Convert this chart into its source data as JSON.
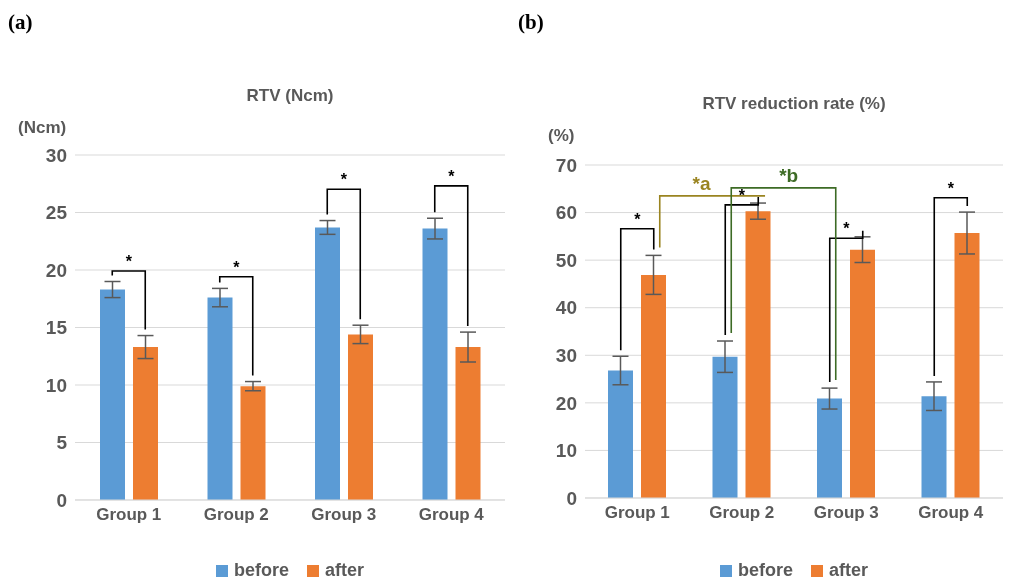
{
  "chart_data": [
    {
      "type": "bar",
      "title": "RTV (Ncm)",
      "ylabel": "(Ncm)",
      "categories": [
        "Group 1",
        "Group 2",
        "Group 3",
        "Group 4"
      ],
      "series": [
        {
          "name": "before",
          "color": "#5b9bd5",
          "values": [
            18.3,
            17.6,
            23.7,
            23.6
          ],
          "errors": [
            0.7,
            0.8,
            0.6,
            0.9
          ]
        },
        {
          "name": "after",
          "color": "#ed7d31",
          "values": [
            13.3,
            9.9,
            14.4,
            13.3
          ],
          "errors": [
            1.0,
            0.4,
            0.8,
            1.3
          ]
        }
      ],
      "ylim": [
        0,
        30
      ],
      "yticks": [
        0,
        5,
        10,
        15,
        20,
        25,
        30
      ],
      "grid": "y",
      "legend": "bottom",
      "annotations": [
        "(a)",
        "*",
        "*",
        "*",
        "*"
      ]
    },
    {
      "type": "bar",
      "title": "RTV reduction rate (%)",
      "ylabel": "(%)",
      "categories": [
        "Group 1",
        "Group 2",
        "Group 3",
        "Group 4"
      ],
      "series": [
        {
          "name": "before",
          "color": "#5b9bd5",
          "values": [
            26.8,
            29.7,
            20.9,
            21.4
          ],
          "errors": [
            3.0,
            3.3,
            2.2,
            3.0
          ]
        },
        {
          "name": "after",
          "color": "#ed7d31",
          "values": [
            46.9,
            60.3,
            52.2,
            55.7
          ],
          "errors": [
            4.1,
            1.7,
            2.7,
            4.4
          ]
        }
      ],
      "ylim": [
        0,
        70
      ],
      "yticks": [
        0,
        10,
        20,
        30,
        40,
        50,
        60,
        70
      ],
      "grid": "y",
      "legend": "bottom",
      "annotations": [
        "(b)",
        "*",
        "*",
        "*",
        "*",
        "*a",
        "*b"
      ]
    }
  ]
}
